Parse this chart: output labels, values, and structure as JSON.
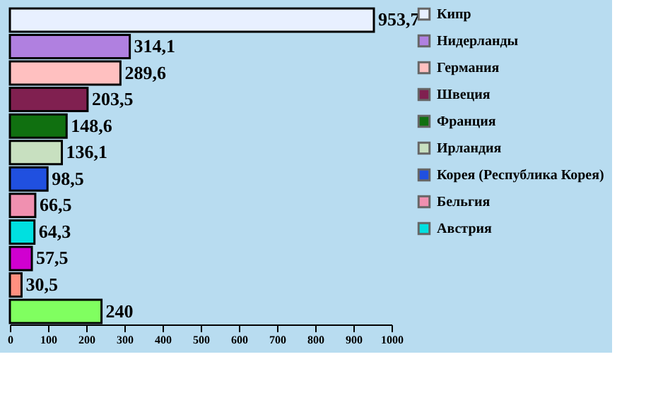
{
  "chart_data": {
    "type": "bar",
    "orientation": "horizontal",
    "categories": [
      null,
      null,
      null,
      null,
      null,
      null,
      null,
      null,
      null,
      null,
      null,
      null
    ],
    "series": [
      {
        "name": "Кипр",
        "color": "#e8f0ff",
        "values": [
          953.7,
          null,
          null,
          null,
          null,
          null,
          null,
          null,
          null,
          null,
          null,
          null
        ],
        "value_labels": [
          "953,7",
          null,
          null,
          null,
          null,
          null,
          null,
          null,
          null,
          null,
          null,
          null
        ]
      },
      {
        "name": "Нидерланды",
        "color": "#b080e0",
        "values": [
          null,
          314.1,
          null,
          null,
          null,
          null,
          null,
          null,
          null,
          null,
          null,
          null
        ],
        "value_labels": [
          null,
          "314,1",
          null,
          null,
          null,
          null,
          null,
          null,
          null,
          null,
          null,
          null
        ]
      },
      {
        "name": "Германия",
        "color": "#ffc0c0",
        "values": [
          null,
          null,
          289.6,
          null,
          null,
          null,
          null,
          null,
          null,
          null,
          null,
          null
        ],
        "value_labels": [
          null,
          null,
          "289,6",
          null,
          null,
          null,
          null,
          null,
          null,
          null,
          null,
          null
        ]
      },
      {
        "name": "Швеция",
        "color": "#802050",
        "values": [
          null,
          null,
          null,
          203.5,
          null,
          null,
          null,
          null,
          null,
          null,
          null,
          null
        ],
        "value_labels": [
          null,
          null,
          null,
          "203,5",
          null,
          null,
          null,
          null,
          null,
          null,
          null,
          null
        ]
      },
      {
        "name": "Франция",
        "color": "#107010",
        "values": [
          null,
          null,
          null,
          null,
          148.6,
          null,
          null,
          null,
          null,
          null,
          null,
          null
        ],
        "value_labels": [
          null,
          null,
          null,
          null,
          "148,6",
          null,
          null,
          null,
          null,
          null,
          null,
          null
        ]
      },
      {
        "name": "Ирландия",
        "color": "#c8e0c0",
        "values": [
          null,
          null,
          null,
          null,
          null,
          136.1,
          null,
          null,
          null,
          null,
          null,
          null
        ],
        "value_labels": [
          null,
          null,
          null,
          null,
          null,
          "136,1",
          null,
          null,
          null,
          null,
          null,
          null
        ]
      },
      {
        "name": "Корея (Республика Корея)",
        "color": "#2050e0",
        "values": [
          null,
          null,
          null,
          null,
          null,
          null,
          98.5,
          null,
          null,
          null,
          null,
          null
        ],
        "value_labels": [
          null,
          null,
          null,
          null,
          null,
          null,
          "98,5",
          null,
          null,
          null,
          null,
          null
        ]
      },
      {
        "name": "Бельгия",
        "color": "#f090b0",
        "values": [
          null,
          null,
          null,
          null,
          null,
          null,
          null,
          66.5,
          null,
          null,
          null,
          null
        ],
        "value_labels": [
          null,
          null,
          null,
          null,
          null,
          null,
          null,
          "66,5",
          null,
          null,
          null,
          null
        ]
      },
      {
        "name": "Австрия",
        "color": "#00e0e0",
        "values": [
          null,
          null,
          null,
          null,
          null,
          null,
          null,
          null,
          64.3,
          null,
          null,
          null
        ],
        "value_labels": [
          null,
          null,
          null,
          null,
          null,
          null,
          null,
          null,
          "64,3",
          null,
          null,
          null
        ]
      },
      {
        "color": "#d000d0",
        "values": [
          null,
          null,
          null,
          null,
          null,
          null,
          null,
          null,
          null,
          57.5,
          null,
          null
        ],
        "value_labels": [
          null,
          null,
          null,
          null,
          null,
          null,
          null,
          null,
          null,
          "57,5",
          null,
          null
        ]
      },
      {
        "color": "#ff9080",
        "values": [
          null,
          null,
          null,
          null,
          null,
          null,
          null,
          null,
          null,
          null,
          30.5,
          null
        ],
        "value_labels": [
          null,
          null,
          null,
          null,
          null,
          null,
          null,
          null,
          null,
          null,
          "30,5",
          null
        ]
      },
      {
        "color": "#80ff60",
        "values": [
          null,
          null,
          null,
          null,
          null,
          null,
          null,
          null,
          null,
          null,
          null,
          240
        ],
        "value_labels": [
          null,
          null,
          null,
          null,
          null,
          null,
          null,
          null,
          null,
          null,
          null,
          "240"
        ]
      }
    ],
    "xlim": [
      0,
      1000
    ],
    "xticks": [
      0,
      100,
      200,
      300,
      400,
      500,
      600,
      700,
      800,
      900,
      1000
    ],
    "stacked": true,
    "grid": false,
    "legend": "right",
    "tick_labels": "x"
  }
}
